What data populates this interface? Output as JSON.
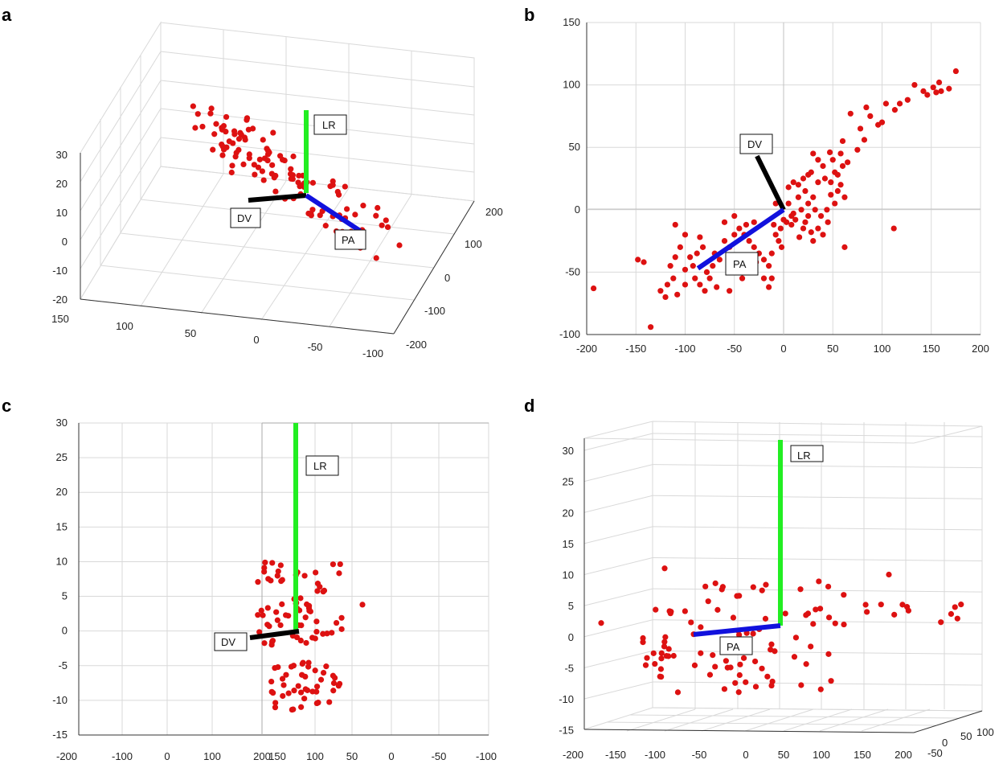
{
  "colors": {
    "points": "#dd1111",
    "lr": "#22ee22",
    "dv": "#000000",
    "pa": "#1111dd",
    "grid": "#d9d9d9"
  },
  "chart_data": [
    {
      "panel": "a",
      "type": "scatter",
      "view": "3d-perspective",
      "z_ticks": [
        "30",
        "20",
        "10",
        "0",
        "-10",
        "-20"
      ],
      "y_ticks": [
        "150",
        "100",
        "50",
        "0",
        "-50",
        "-100"
      ],
      "x_ticks": [
        "200",
        "100",
        "0",
        "-100",
        "-200"
      ],
      "axis_labels": {
        "lr": "LR",
        "dv": "DV",
        "pa": "PA"
      }
    },
    {
      "panel": "b",
      "type": "scatter",
      "view": "top (x-y)",
      "xlim": [
        -200,
        200
      ],
      "ylim": [
        -100,
        150
      ],
      "x_ticks": [
        "-200",
        "-150",
        "-100",
        "-50",
        "0",
        "50",
        "100",
        "150",
        "200"
      ],
      "y_ticks": [
        "150",
        "100",
        "50",
        "0",
        "-50",
        "-100"
      ],
      "axis_labels": {
        "dv": "DV",
        "pa": "PA"
      },
      "axes_vectors": {
        "dv": [
          [
            0,
            0
          ],
          [
            -27,
            43
          ]
        ],
        "pa": [
          [
            0,
            0
          ],
          [
            -87,
            -47
          ]
        ]
      },
      "points": [
        [
          175,
          111
        ],
        [
          158,
          102
        ],
        [
          152,
          98
        ],
        [
          146,
          92
        ],
        [
          160,
          95
        ],
        [
          168,
          97
        ],
        [
          155,
          94
        ],
        [
          133,
          100
        ],
        [
          142,
          95
        ],
        [
          126,
          88
        ],
        [
          118,
          85
        ],
        [
          113,
          80
        ],
        [
          104,
          85
        ],
        [
          100,
          70
        ],
        [
          96,
          68
        ],
        [
          88,
          75
        ],
        [
          84,
          82
        ],
        [
          78,
          65
        ],
        [
          68,
          77
        ],
        [
          82,
          56
        ],
        [
          75,
          48
        ],
        [
          60,
          55
        ],
        [
          58,
          45
        ],
        [
          50,
          40
        ],
        [
          47,
          46
        ],
        [
          40,
          35
        ],
        [
          35,
          40
        ],
        [
          30,
          45
        ],
        [
          28,
          30
        ],
        [
          25,
          28
        ],
        [
          20,
          25
        ],
        [
          15,
          20
        ],
        [
          10,
          22
        ],
        [
          5,
          18
        ],
        [
          58,
          20
        ],
        [
          62,
          10
        ],
        [
          55,
          15
        ],
        [
          48,
          12
        ],
        [
          52,
          5
        ],
        [
          44,
          0
        ],
        [
          38,
          -5
        ],
        [
          45,
          -10
        ],
        [
          35,
          -15
        ],
        [
          32,
          0
        ],
        [
          25,
          5
        ],
        [
          18,
          0
        ],
        [
          12,
          -8
        ],
        [
          8,
          -5
        ],
        [
          3,
          -10
        ],
        [
          -3,
          -15
        ],
        [
          -8,
          -20
        ],
        [
          -5,
          -25
        ],
        [
          -2,
          -30
        ],
        [
          -12,
          -35
        ],
        [
          -15,
          -45
        ],
        [
          -12,
          -55
        ],
        [
          -20,
          -40
        ],
        [
          -25,
          -35
        ],
        [
          -30,
          -30
        ],
        [
          -35,
          -25
        ],
        [
          -40,
          -20
        ],
        [
          -45,
          -15
        ],
        [
          -50,
          -20
        ],
        [
          -55,
          -30
        ],
        [
          -60,
          -25
        ],
        [
          -65,
          -40
        ],
        [
          -70,
          -35
        ],
        [
          -72,
          -45
        ],
        [
          -78,
          -50
        ],
        [
          -82,
          -30
        ],
        [
          -88,
          -35
        ],
        [
          -92,
          -45
        ],
        [
          -95,
          -38
        ],
        [
          -100,
          -48
        ],
        [
          -105,
          -30
        ],
        [
          -110,
          -38
        ],
        [
          -112,
          -55
        ],
        [
          -115,
          -45
        ],
        [
          -118,
          -60
        ],
        [
          -120,
          -70
        ],
        [
          -125,
          -65
        ],
        [
          -85,
          -60
        ],
        [
          -75,
          -55
        ],
        [
          -68,
          -62
        ],
        [
          -52,
          -48
        ],
        [
          -42,
          -55
        ],
        [
          -35,
          -50
        ],
        [
          -28,
          -42
        ],
        [
          -20,
          -55
        ],
        [
          -15,
          -62
        ],
        [
          -55,
          -65
        ],
        [
          -80,
          -65
        ],
        [
          -90,
          -55
        ],
        [
          -100,
          -60
        ],
        [
          -108,
          -68
        ],
        [
          -148,
          -40
        ],
        [
          -142,
          -42
        ],
        [
          -135,
          -94
        ],
        [
          -193,
          -63
        ],
        [
          112,
          -15
        ],
        [
          62,
          -30
        ],
        [
          40,
          -20
        ],
        [
          30,
          -25
        ],
        [
          20,
          -15
        ],
        [
          10,
          -3
        ],
        [
          -10,
          -12
        ],
        [
          0,
          -8
        ],
        [
          5,
          5
        ],
        [
          -8,
          5
        ],
        [
          15,
          10
        ],
        [
          22,
          15
        ],
        [
          25,
          -5
        ],
        [
          30,
          10
        ],
        [
          35,
          22
        ],
        [
          42,
          25
        ],
        [
          52,
          30
        ],
        [
          60,
          35
        ],
        [
          65,
          38
        ],
        [
          55,
          28
        ],
        [
          48,
          22
        ],
        [
          28,
          -18
        ],
        [
          22,
          -10
        ],
        [
          16,
          -22
        ],
        [
          8,
          -12
        ],
        [
          -30,
          -10
        ],
        [
          -50,
          -5
        ],
        [
          -60,
          -10
        ],
        [
          -38,
          -12
        ],
        [
          -85,
          -22
        ],
        [
          -100,
          -20
        ],
        [
          -110,
          -12
        ]
      ]
    },
    {
      "panel": "c",
      "type": "scatter",
      "view": "side (x-z)",
      "ylim": [
        -15,
        30
      ],
      "x_ticks": [
        "-200",
        "-100",
        "0",
        "100",
        "200",
        "150",
        "100",
        "50",
        "0",
        "-50",
        "-100"
      ],
      "y_ticks": [
        "30",
        "25",
        "20",
        "15",
        "10",
        "5",
        "0",
        "-5",
        "-10",
        "-15"
      ],
      "axis_labels": {
        "lr": "LR",
        "dv": "DV"
      },
      "axes_vectors": {
        "lr": [
          [
            0,
            0
          ],
          [
            0,
            30
          ]
        ],
        "dv": [
          [
            0,
            0
          ],
          [
            -50,
            -1
          ]
        ]
      }
    },
    {
      "panel": "d",
      "type": "scatter",
      "view": "3d-front",
      "zlim": [
        -15,
        30
      ],
      "z_ticks": [
        "30",
        "25",
        "20",
        "15",
        "10",
        "5",
        "0",
        "-5",
        "-10",
        "-15"
      ],
      "x_ticks": [
        "-200",
        "-150",
        "-100",
        "-50",
        "0",
        "50",
        "100",
        "150",
        "200"
      ],
      "y_ticks": [
        "-50",
        "0",
        "50",
        "100"
      ],
      "axis_labels": {
        "lr": "LR",
        "pa": "PA"
      }
    }
  ]
}
